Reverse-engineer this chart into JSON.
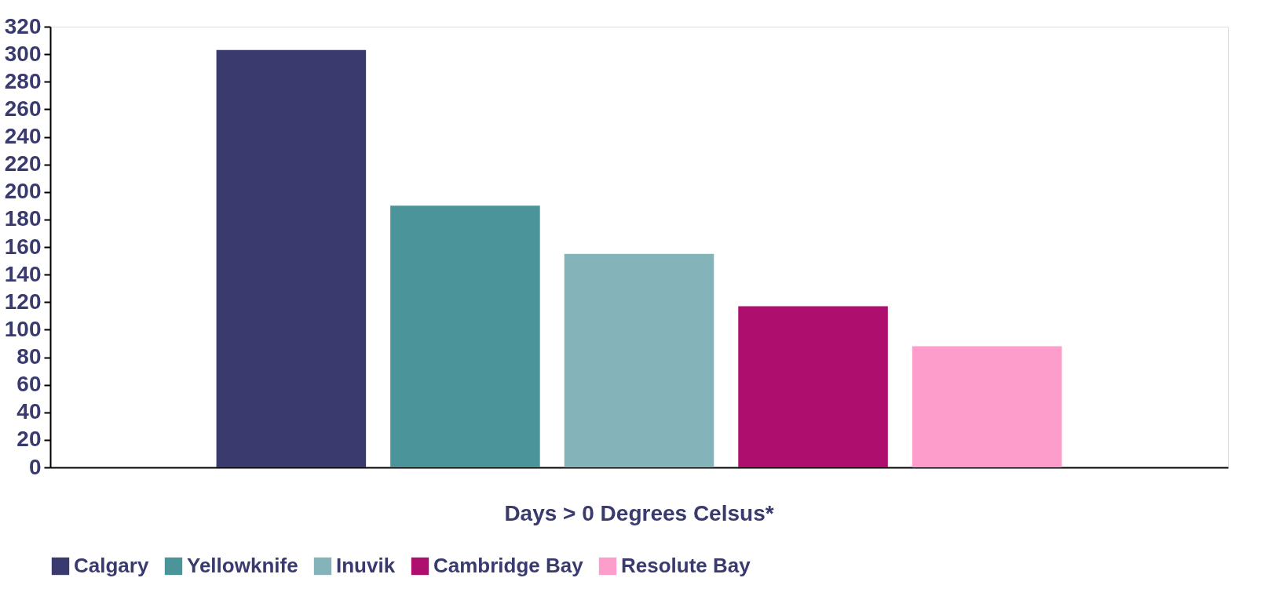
{
  "chart_data": {
    "type": "bar",
    "categories": [
      "Days > 0 Degrees Celsus*"
    ],
    "series": [
      {
        "name": "Calgary",
        "color": "#393a6e",
        "values": [
          303
        ]
      },
      {
        "name": "Yellowknife",
        "color": "#4a949a",
        "values": [
          190
        ]
      },
      {
        "name": "Inuvik",
        "color": "#84b3ba",
        "values": [
          155
        ]
      },
      {
        "name": "Cambridge Bay",
        "color": "#ae0f6e",
        "values": [
          117
        ]
      },
      {
        "name": "Resolute Bay",
        "color": "#fc9dcc",
        "values": [
          88
        ]
      }
    ],
    "ylim": [
      0,
      320
    ],
    "yticks": [
      0,
      20,
      40,
      60,
      80,
      100,
      120,
      140,
      160,
      180,
      200,
      220,
      240,
      260,
      280,
      300,
      320
    ],
    "grid": false,
    "legend": "bottom"
  }
}
